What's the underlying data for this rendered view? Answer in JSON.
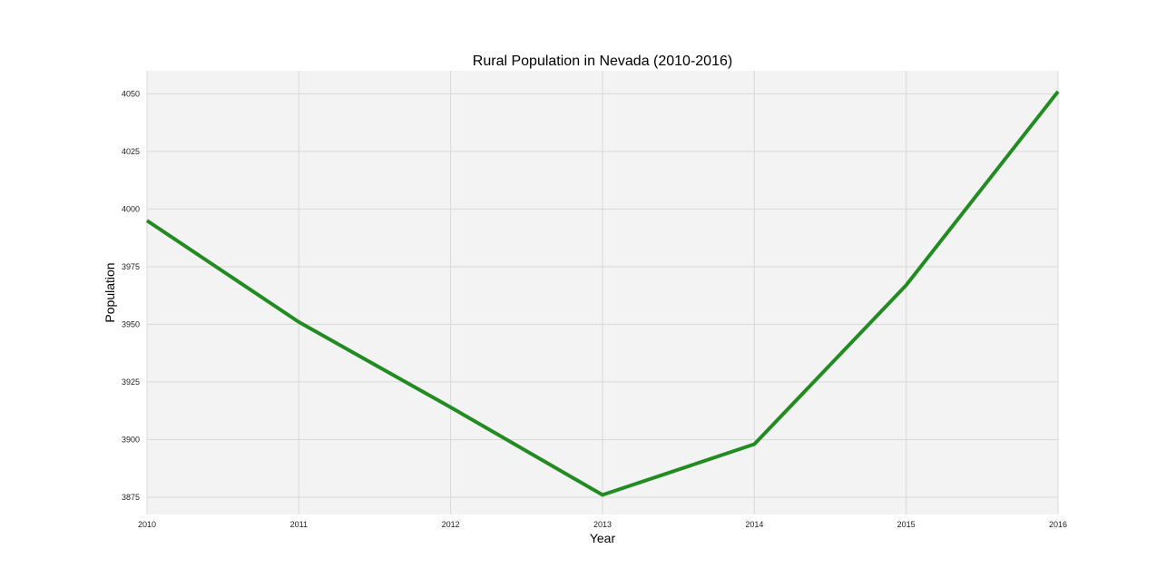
{
  "colors": {
    "plot_background": "#f3f3f3",
    "grid": "#d9d9d9",
    "line": "#228b22",
    "text": "#222222"
  },
  "chart_data": {
    "type": "line",
    "title": "Rural Population in Nevada (2010-2016)",
    "xlabel": "Year",
    "ylabel": "Population",
    "x": [
      2010,
      2011,
      2012,
      2013,
      2014,
      2015,
      2016
    ],
    "series": [
      {
        "values": [
          3995,
          3951,
          3914,
          3876,
          3898,
          3967,
          4051
        ]
      }
    ],
    "xlim": [
      2010,
      2016
    ],
    "ylim": [
      3867.5,
      4060
    ],
    "xticks": [
      2010,
      2011,
      2012,
      2013,
      2014,
      2015,
      2016
    ],
    "yticks": [
      3875,
      3900,
      3925,
      3950,
      3975,
      4000,
      4025,
      4050
    ],
    "grid": true,
    "legend": false
  }
}
